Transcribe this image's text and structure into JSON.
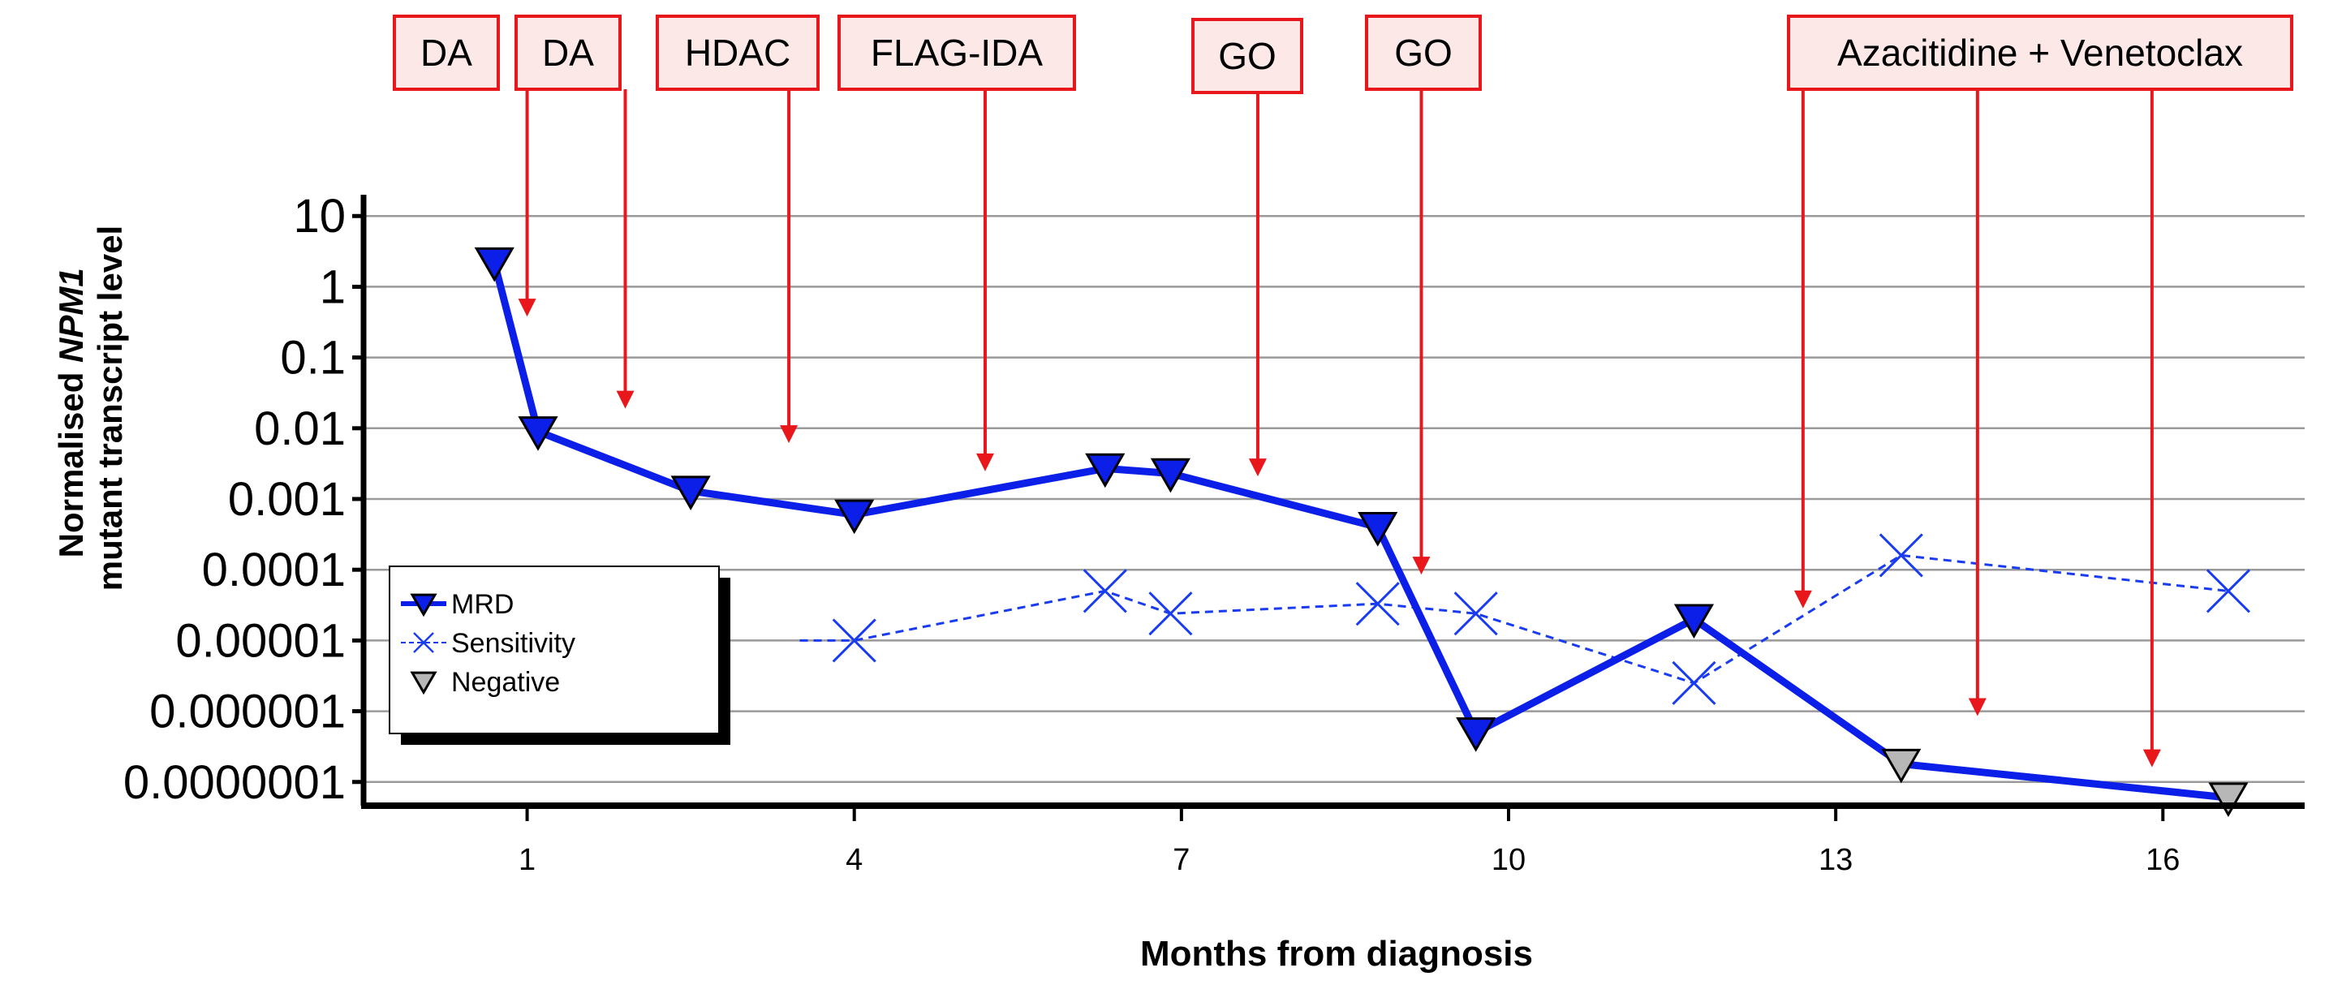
{
  "chart_data": {
    "type": "line",
    "title": "",
    "xlabel": "Months from diagnosis",
    "ylabel_line1_prefix": "Normalised ",
    "ylabel_line1_italic": "NPM1",
    "ylabel_line2": "mutant transcript level",
    "y_scale": "log",
    "xlim": [
      -0.5,
      17.3
    ],
    "ylim": [
      5e-08,
      20
    ],
    "x_ticks": [
      {
        "value": 1,
        "label": "1"
      },
      {
        "value": 4,
        "label": "4"
      },
      {
        "value": 7,
        "label": "7"
      },
      {
        "value": 10,
        "label": "10"
      },
      {
        "value": 13,
        "label": "13"
      },
      {
        "value": 16,
        "label": "16"
      }
    ],
    "y_ticks": [
      {
        "value": 10,
        "label": "10"
      },
      {
        "value": 1,
        "label": "1"
      },
      {
        "value": 0.1,
        "label": "0.1"
      },
      {
        "value": 0.01,
        "label": "0.01"
      },
      {
        "value": 0.001,
        "label": "0.001"
      },
      {
        "value": 0.0001,
        "label": "0.0001"
      },
      {
        "value": 1e-05,
        "label": "0.00001"
      },
      {
        "value": 1e-06,
        "label": "0.000001"
      },
      {
        "value": 1e-07,
        "label": "0.0000001"
      }
    ],
    "grid": true,
    "legend": {
      "placement": "lower-left",
      "entries": [
        {
          "name": "MRD",
          "marker": "triangle-down-blue"
        },
        {
          "name": "Sensitivity",
          "marker": "x-dashed"
        },
        {
          "name": "Negative",
          "marker": "triangle-down-gray"
        }
      ]
    },
    "series": [
      {
        "name": "MRD",
        "color": "#0b1fe8",
        "style": "solid",
        "x": [
          0.7,
          1.1,
          2.5,
          4.0,
          6.3,
          6.9,
          8.8,
          9.7,
          11.7,
          13.6,
          16.6
        ],
        "y": [
          2.2,
          0.009,
          0.0013,
          0.0006,
          0.0027,
          0.0023,
          0.0004,
          5e-07,
          2e-05,
          1.8e-07,
          6e-08
        ],
        "negative": [
          false,
          false,
          false,
          false,
          false,
          false,
          false,
          false,
          false,
          true,
          true
        ]
      },
      {
        "name": "Sensitivity",
        "color": "#1a3cf0",
        "style": "dashed",
        "x": [
          3.5,
          4.0,
          6.3,
          6.9,
          8.8,
          9.7,
          11.7,
          13.6,
          16.6
        ],
        "y": [
          1e-05,
          1e-05,
          5e-05,
          2.4e-05,
          3.3e-05,
          2.4e-05,
          2.5e-06,
          0.00016,
          5e-05
        ],
        "markers": [
          false,
          true,
          true,
          true,
          true,
          true,
          true,
          true,
          true
        ]
      }
    ],
    "annotations": [
      {
        "label": "DA",
        "arrow_x": 1.0,
        "arrow_to_y": 0.4
      },
      {
        "label": "DA",
        "arrow_x": 1.9,
        "arrow_to_y": 0.02
      },
      {
        "label": "HDAC",
        "arrow_x": 3.4,
        "arrow_to_y": 0.0065
      },
      {
        "label": "FLAG-IDA",
        "arrow_x": 5.2,
        "arrow_to_y": 0.0026
      },
      {
        "label": "GO",
        "arrow_x": 7.7,
        "arrow_to_y": 0.0022
      },
      {
        "label": "GO",
        "arrow_x": 9.2,
        "arrow_to_y": 9e-05
      },
      {
        "label": "Azacitidine + Venetoclax",
        "arrow_x": [
          12.7,
          14.3,
          15.9
        ],
        "arrow_to_y": [
          3e-05,
          9e-07,
          1.7e-07
        ]
      }
    ]
  }
}
